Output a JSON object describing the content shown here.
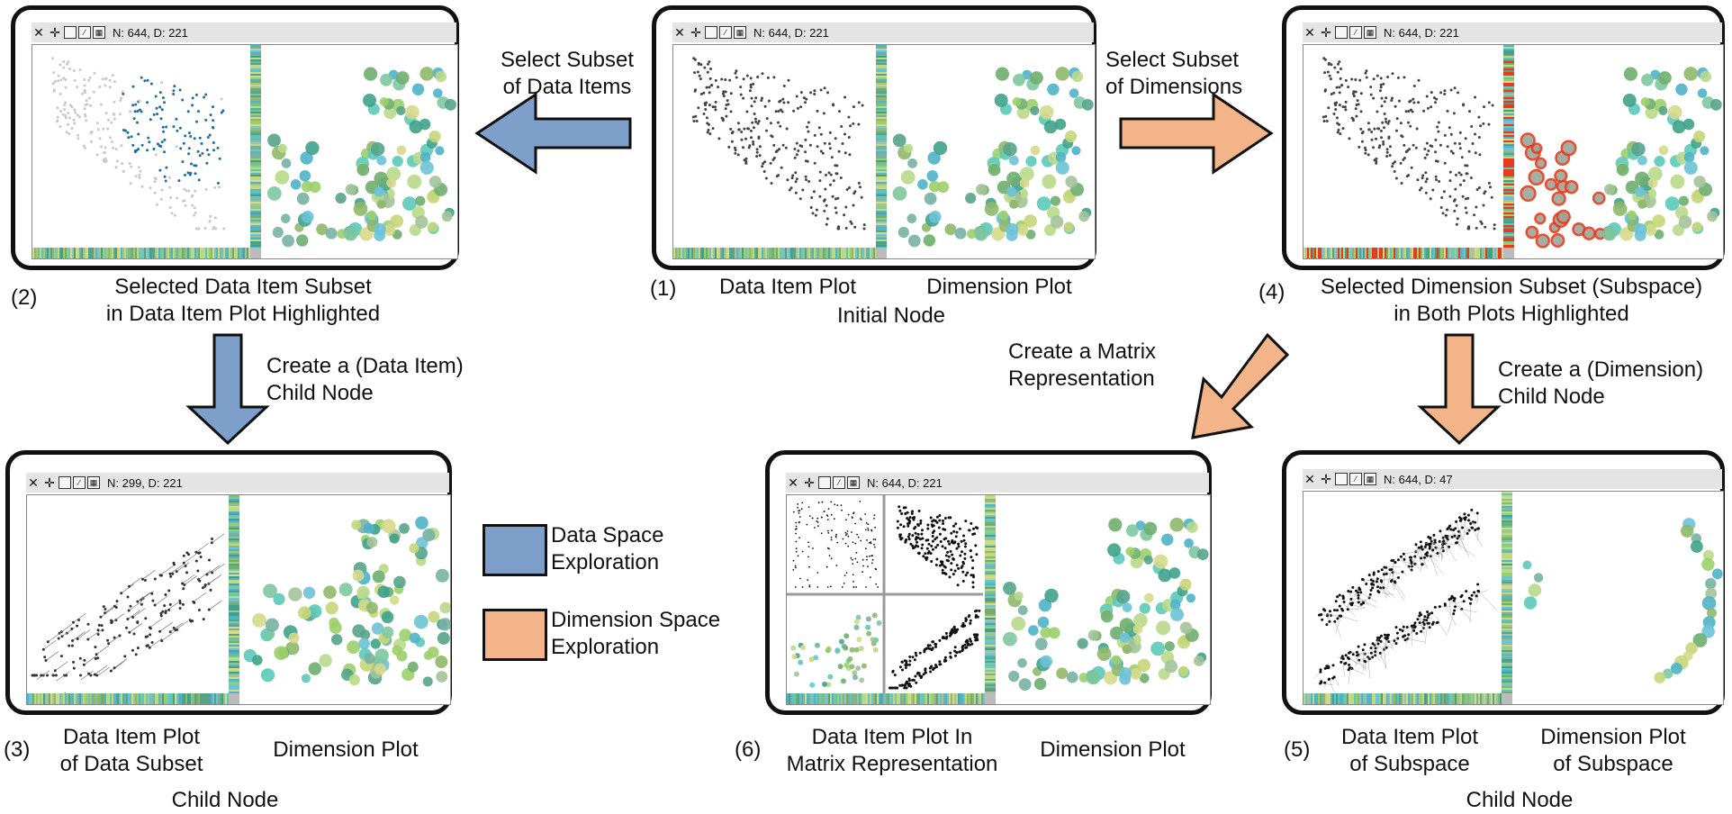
{
  "colors": {
    "data_space": "#7f9fcb",
    "dimension_space": "#f4b48a",
    "highlight_data": "#1f6e9e",
    "highlight_dim": "#e83a1c",
    "frame": "#111111"
  },
  "toolbar": {
    "icons": [
      "close-icon",
      "move-icon",
      "panel-icon",
      "scatter-icon",
      "matrix-icon"
    ],
    "glyphs": [
      "✕",
      "✛",
      "▯",
      "⁄",
      "▦"
    ]
  },
  "nodes": [
    {
      "id": "node-1",
      "stats": "N: 644, D: 221"
    },
    {
      "id": "node-2",
      "stats": "N: 644, D: 221"
    },
    {
      "id": "node-4",
      "stats": "N: 644, D: 221"
    },
    {
      "id": "node-3",
      "stats": "N: 299, D: 221"
    },
    {
      "id": "node-6",
      "stats": "N: 644, D: 221"
    },
    {
      "id": "node-5",
      "stats": "N: 644, D: 47"
    }
  ],
  "captions": {
    "n1_num": "(1)",
    "n1_data_plot": "Data Item Plot",
    "n1_dim_plot": "Dimension Plot",
    "n1_node": "Initial Node",
    "n2_num": "(2)",
    "n2_line1": "Selected Data Item Subset",
    "n2_line2": "in Data Item Plot Highlighted",
    "n4_num": "(4)",
    "n4_line1": "Selected Dimension Subset (Subspace)",
    "n4_line2": "in Both Plots Highlighted",
    "n3_num": "(3)",
    "n3_data1": "Data Item Plot",
    "n3_data2": "of Data Subset",
    "n3_dim": "Dimension Plot",
    "n3_node": "Child Node",
    "n6_num": "(6)",
    "n6_data1": "Data Item Plot In",
    "n6_data2": "Matrix Representation",
    "n6_dim": "Dimension Plot",
    "n5_num": "(5)",
    "n5_data1": "Data Item Plot",
    "n5_data2": "of Subspace",
    "n5_dim1": "Dimension Plot",
    "n5_dim2": "of Subspace",
    "n5_node": "Child Node"
  },
  "arrows": {
    "a_left_1": "Select Subset",
    "a_left_2": "of Data Items",
    "a_right_1": "Select Subset",
    "a_right_2": "of Dimensions",
    "a_down_left_1": "Create a (Data Item)",
    "a_down_left_2": "Child Node",
    "a_matrix_1": "Create a Matrix",
    "a_matrix_2": "Representation",
    "a_down_right_1": "Create a (Dimension)",
    "a_down_right_2": "Child Node"
  },
  "legend": {
    "data_space_1": "Data Space",
    "data_space_2": "Exploration",
    "dim_space_1": "Dimension Space",
    "dim_space_2": "Exploration"
  }
}
